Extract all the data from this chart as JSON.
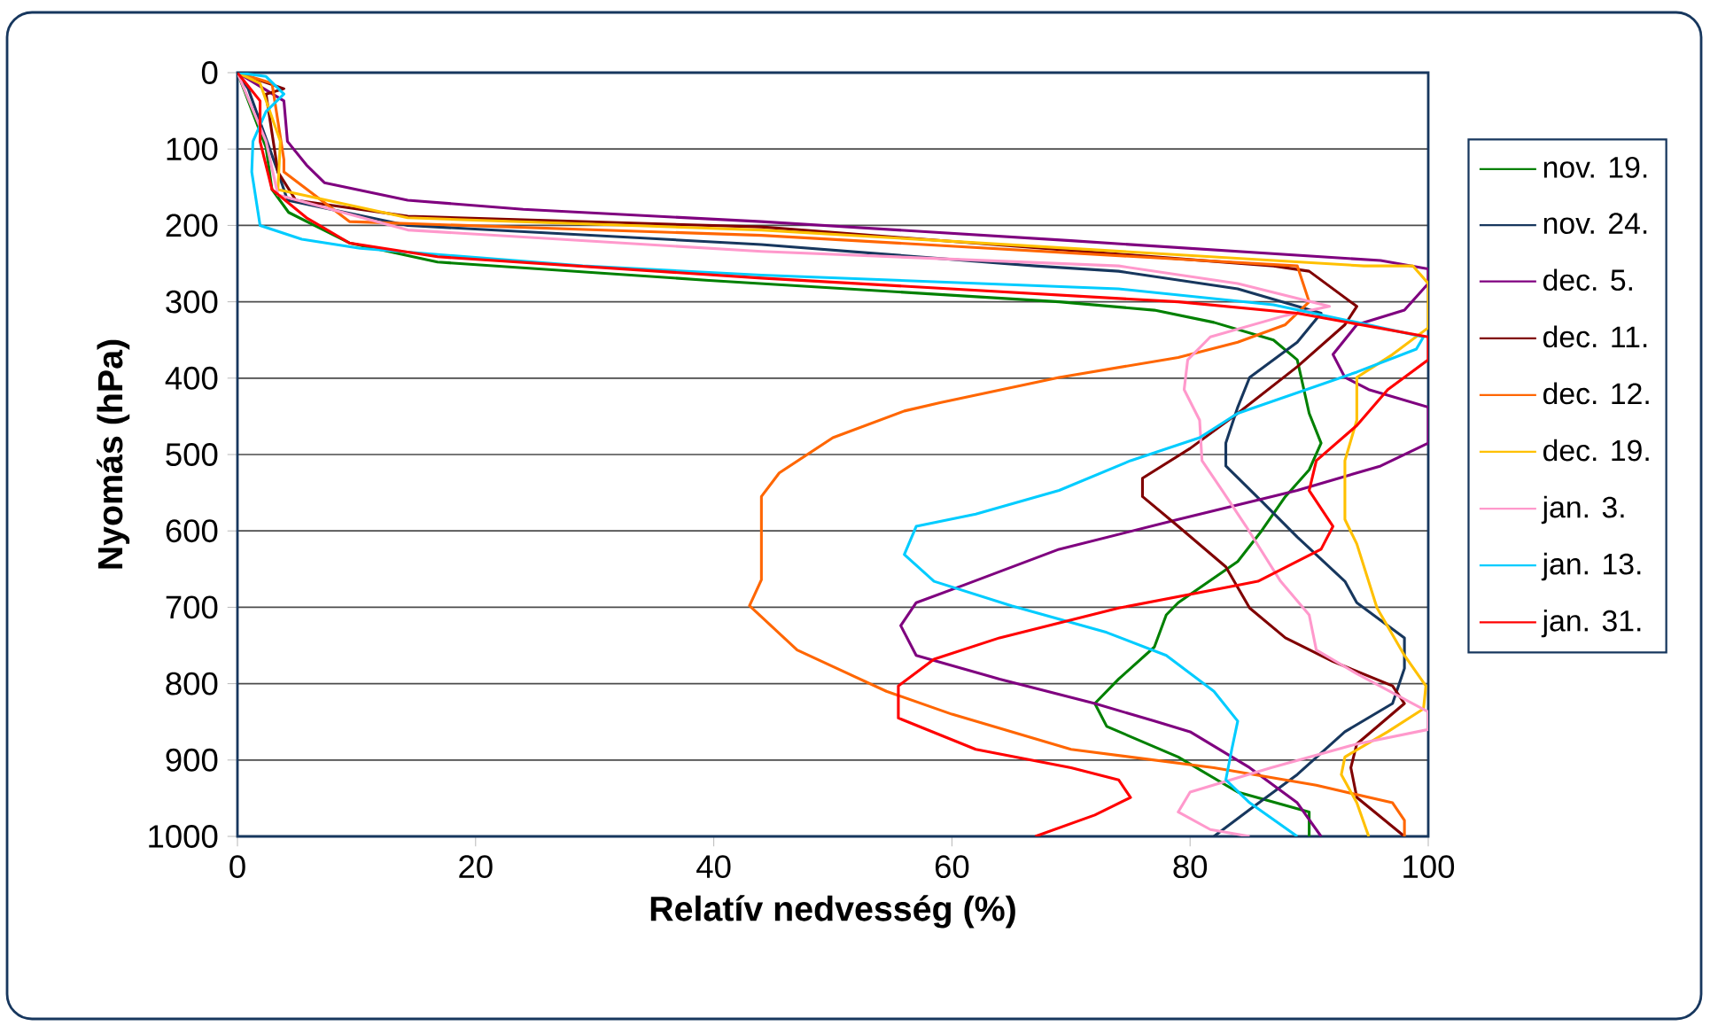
{
  "chart_data": {
    "type": "line",
    "xlabel": "Relatív nedvesség (%)",
    "ylabel": "Nyomás (hPa)",
    "xlim": [
      0,
      100
    ],
    "ylim": [
      1000,
      0
    ],
    "xticks": [
      0,
      20,
      40,
      60,
      80,
      100
    ],
    "yticks": [
      0,
      100,
      200,
      300,
      400,
      500,
      600,
      700,
      800,
      900,
      1000
    ],
    "grid": "y",
    "legend": "right",
    "marker": "none",
    "line_style": "solid",
    "series": [
      {
        "name": "nov. 19.",
        "color": "#008000",
        "x": [
          0,
          2.4,
          2.9,
          4.3,
          9.4,
          16.8,
          39.6,
          69,
          77,
          82,
          87,
          89,
          90,
          91,
          90,
          88,
          86,
          84,
          79,
          78,
          77,
          74,
          72,
          73,
          79,
          84,
          90,
          90
        ],
        "values": [
          0,
          98,
          153,
          183,
          223,
          248,
          272,
          300,
          311,
          327,
          350,
          376,
          446,
          485,
          520,
          555,
          600,
          640,
          694,
          710,
          752,
          794,
          826,
          856,
          896,
          942,
          968,
          1000
        ]
      },
      {
        "name": "nov. 24.",
        "color": "#17375e",
        "x": [
          0,
          0.9,
          3.4,
          4.2,
          14.3,
          44,
          67,
          74,
          84,
          91,
          89,
          85,
          84,
          83,
          83,
          86,
          89,
          93,
          94,
          98,
          98,
          97,
          93,
          89,
          85,
          82
        ],
        "values": [
          0,
          21,
          130,
          167,
          200,
          225,
          253,
          260,
          283,
          315,
          353,
          399,
          438,
          485,
          515,
          561,
          608,
          666,
          694,
          740,
          780,
          826,
          863,
          919,
          965,
          1000
        ]
      },
      {
        "name": "dec. 5.",
        "color": "#7f007f",
        "x": [
          0,
          3.9,
          4.2,
          5.8,
          7.3,
          14.3,
          24,
          44,
          70,
          96,
          100,
          100,
          98,
          94,
          92,
          93,
          95,
          100,
          100,
          96,
          89,
          79,
          69,
          61,
          57,
          55.7,
          57,
          64,
          72,
          77,
          80,
          85,
          89,
          91
        ],
        "values": [
          0,
          37,
          90,
          121,
          144,
          167,
          179,
          195,
          220,
          246,
          257,
          276,
          311,
          330,
          369,
          399,
          415,
          438,
          485,
          515,
          547,
          585,
          624,
          671,
          694,
          724,
          763,
          794,
          826,
          849,
          863,
          910,
          956,
          1000
        ]
      },
      {
        "name": "dec. 11.",
        "color": "#800000",
        "x": [
          0,
          3.9,
          2.4,
          3.4,
          4.9,
          14.3,
          44,
          87,
          90,
          94,
          93,
          89,
          84,
          80,
          76,
          76,
          79,
          83,
          85,
          88,
          92,
          97,
          98,
          94,
          93.5,
          94,
          98
        ],
        "values": [
          0,
          21,
          28,
          130,
          167,
          188,
          202,
          253,
          260,
          306,
          330,
          385,
          446,
          492,
          531,
          555,
          594,
          647,
          701,
          740,
          771,
          803,
          826,
          879,
          910,
          949,
          1000
        ]
      },
      {
        "name": "dec. 12.",
        "color": "#ff6600",
        "x": [
          0,
          2.9,
          3.9,
          3.9,
          9.4,
          44,
          89,
          90,
          88,
          84,
          79,
          69,
          59,
          56,
          50,
          45.5,
          44,
          44,
          43,
          47,
          54.5,
          60,
          70,
          82,
          90.6,
          97,
          98,
          98
        ],
        "values": [
          0,
          14,
          114,
          130,
          195,
          213,
          253,
          300,
          330,
          353,
          373,
          399,
          432,
          443,
          478,
          524,
          555,
          664,
          698,
          756,
          810,
          840,
          886,
          910,
          933,
          956,
          979,
          1000
        ]
      },
      {
        "name": "dec. 19.",
        "color": "#ffc000",
        "x": [
          0,
          1.9,
          3.6,
          3.4,
          14.3,
          44,
          94.6,
          98.7,
          100,
          100,
          97,
          94,
          94,
          93,
          93,
          94,
          95.7,
          98,
          99.8,
          99.6,
          96.6,
          93,
          92.7,
          94,
          95
        ],
        "values": [
          0,
          14,
          90,
          153,
          190,
          206,
          253,
          253,
          276,
          334,
          369,
          399,
          455,
          508,
          585,
          617,
          701,
          763,
          803,
          833,
          863,
          896,
          919,
          956,
          1000
        ]
      },
      {
        "name": "jan. 3.",
        "color": "#ff99cc",
        "x": [
          0,
          2.4,
          3.4,
          14.3,
          44,
          74,
          84,
          91.7,
          88,
          81.7,
          79.8,
          79.5,
          80.8,
          81,
          82.7,
          84.7,
          87.6,
          90,
          90.6,
          94,
          100,
          100,
          94,
          86.8,
          80,
          79,
          81.7,
          85
        ],
        "values": [
          0,
          90,
          160,
          206,
          234,
          253,
          276,
          306,
          318,
          346,
          376,
          415,
          455,
          508,
          547,
          594,
          666,
          710,
          756,
          787,
          837,
          860,
          879,
          910,
          942,
          968,
          991,
          1000
        ]
      },
      {
        "name": "jan. 13.",
        "color": "#00ccff",
        "x": [
          0,
          2.4,
          3.9,
          2.4,
          1.3,
          1.2,
          1.9,
          5.4,
          10.3,
          29,
          44,
          74,
          87,
          94,
          99.6,
          99,
          94,
          84,
          80.8,
          75,
          69,
          62,
          57,
          56,
          58.5,
          65,
          73,
          78,
          82,
          84,
          83.5,
          83,
          85,
          89
        ],
        "values": [
          0,
          5,
          28,
          51,
          90,
          130,
          200,
          218,
          230,
          253,
          265,
          283,
          304,
          327,
          346,
          362,
          392,
          446,
          478,
          508,
          547,
          578,
          594,
          631,
          666,
          698,
          733,
          763,
          810,
          849,
          886,
          926,
          956,
          1000
        ]
      },
      {
        "name": "jan. 31.",
        "color": "#ff0000",
        "x": [
          0,
          1.9,
          1.9,
          2.9,
          5.8,
          9.4,
          16.8,
          44,
          79,
          89,
          100,
          100,
          96.6,
          94,
          90.6,
          90,
          92,
          91,
          85.7,
          84,
          74,
          64,
          58.5,
          55.5,
          55.5,
          62,
          70,
          74,
          75,
          72,
          67
        ],
        "values": [
          0,
          37,
          90,
          153,
          190,
          223,
          241,
          269,
          300,
          315,
          346,
          376,
          415,
          462,
          508,
          547,
          594,
          624,
          666,
          671,
          701,
          740,
          768,
          803,
          845,
          886,
          910,
          926,
          949,
          972,
          1000
        ]
      }
    ]
  }
}
